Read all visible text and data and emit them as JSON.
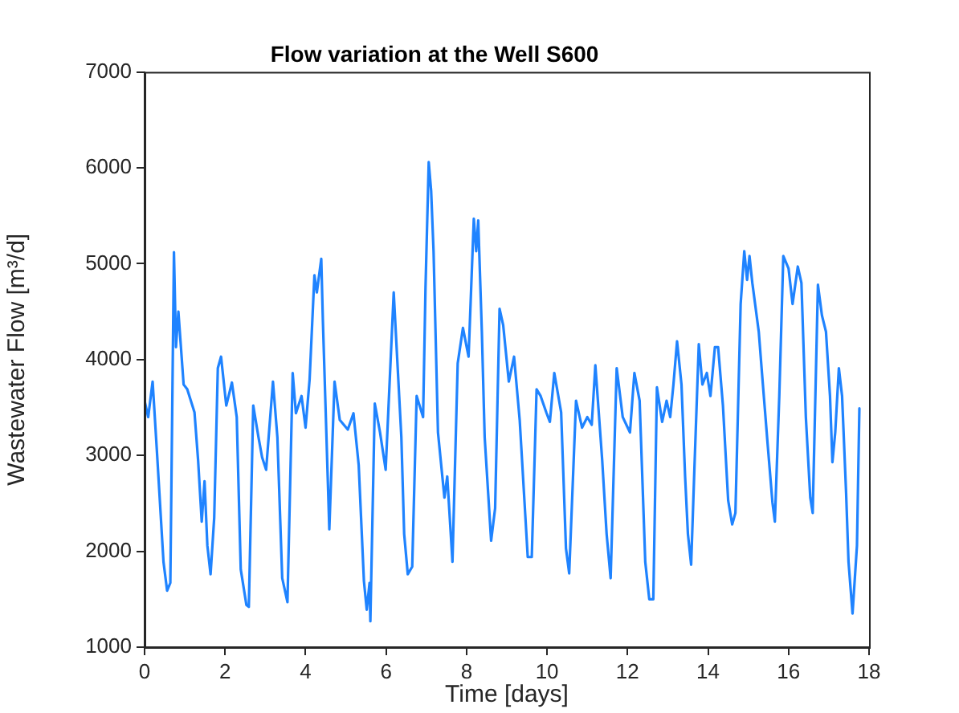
{
  "chart_data": {
    "type": "line",
    "title": "Flow variation at the Well S600",
    "xlabel": "Time [days]",
    "ylabel": "Wastewater Flow [m³/d]",
    "xlim": [
      0,
      18
    ],
    "xticks": [
      0,
      2,
      4,
      6,
      8,
      10,
      12,
      14,
      16,
      18
    ],
    "ylim": [
      1000,
      7000
    ],
    "yticks": [
      1000,
      2000,
      3000,
      4000,
      5000,
      6000,
      7000
    ],
    "grid": false,
    "legend": false,
    "marker": "none",
    "line_style": "solid",
    "series": [
      {
        "color": "#1f83ff",
        "x": [
          0,
          0.09,
          0.2,
          0.31,
          0.47,
          0.56,
          0.64,
          0.73,
          0.78,
          0.84,
          0.97,
          1.06,
          1.24,
          1.33,
          1.42,
          1.49,
          1.56,
          1.64,
          1.73,
          1.82,
          1.9,
          2.03,
          2.17,
          2.29,
          2.39,
          2.53,
          2.59,
          2.7,
          2.83,
          2.92,
          3.02,
          3.19,
          3.3,
          3.42,
          3.55,
          3.68,
          3.76,
          3.9,
          4.0,
          4.1,
          4.22,
          4.28,
          4.39,
          4.43,
          4.59,
          4.72,
          4.85,
          5.05,
          5.19,
          5.32,
          5.45,
          5.52,
          5.59,
          5.61,
          5.72,
          5.85,
          5.99,
          6.19,
          6.38,
          6.45,
          6.54,
          6.65,
          6.76,
          6.92,
          6.98,
          7.06,
          7.12,
          7.18,
          7.29,
          7.45,
          7.52,
          7.65,
          7.78,
          7.91,
          8.05,
          8.18,
          8.24,
          8.29,
          8.38,
          8.45,
          8.61,
          8.71,
          8.82,
          8.91,
          9.05,
          9.18,
          9.32,
          9.52,
          9.62,
          9.74,
          9.84,
          9.98,
          10.07,
          10.18,
          10.35,
          10.47,
          10.55,
          10.72,
          10.87,
          11.0,
          11.11,
          11.2,
          11.37,
          11.48,
          11.58,
          11.73,
          11.88,
          11.97,
          12.06,
          12.17,
          12.3,
          12.44,
          12.54,
          12.64,
          12.73,
          12.86,
          12.97,
          13.06,
          13.14,
          13.23,
          13.34,
          13.43,
          13.5,
          13.58,
          13.66,
          13.77,
          13.86,
          13.97,
          14.06,
          14.17,
          14.25,
          14.37,
          14.5,
          14.6,
          14.68,
          14.81,
          14.9,
          14.97,
          15.03,
          15.1,
          15.26,
          15.34,
          15.48,
          15.6,
          15.66,
          15.77,
          15.87,
          16.0,
          16.1,
          16.23,
          16.32,
          16.43,
          16.54,
          16.6,
          16.73,
          16.83,
          16.93,
          17.03,
          17.09,
          17.16,
          17.25,
          17.33,
          17.43,
          17.49,
          17.59,
          17.7,
          17.76
        ],
        "values": [
          3570,
          3400,
          3770,
          3020,
          1890,
          1590,
          1670,
          5120,
          4130,
          4500,
          3740,
          3690,
          3450,
          2950,
          2310,
          2730,
          2060,
          1760,
          2350,
          3910,
          4030,
          3520,
          3760,
          3400,
          1810,
          1440,
          1420,
          3520,
          3190,
          2980,
          2850,
          3770,
          3190,
          1720,
          1470,
          3860,
          3440,
          3620,
          3290,
          3790,
          4880,
          4700,
          5050,
          4410,
          2230,
          3770,
          3370,
          3270,
          3440,
          2900,
          1690,
          1390,
          1670,
          1270,
          3540,
          3240,
          2850,
          4700,
          3190,
          2180,
          1760,
          1840,
          3620,
          3400,
          4750,
          6060,
          5760,
          5130,
          3240,
          2560,
          2780,
          1890,
          3960,
          4330,
          4030,
          5470,
          5130,
          5450,
          4290,
          3190,
          2110,
          2450,
          4530,
          4360,
          3770,
          4030,
          3370,
          1940,
          1940,
          3690,
          3620,
          3450,
          3350,
          3860,
          3450,
          2030,
          1770,
          3570,
          3290,
          3400,
          3320,
          3940,
          2950,
          2180,
          1720,
          3910,
          3400,
          3320,
          3240,
          3860,
          3570,
          1890,
          1500,
          1500,
          3710,
          3350,
          3570,
          3400,
          3740,
          4190,
          3740,
          2780,
          2180,
          1860,
          2850,
          4160,
          3740,
          3860,
          3620,
          4130,
          4130,
          3520,
          2530,
          2280,
          2400,
          4580,
          5130,
          4830,
          5080,
          4800,
          4290,
          3860,
          3120,
          2510,
          2310,
          3620,
          5080,
          4950,
          4580,
          4970,
          4800,
          3400,
          2560,
          2400,
          4780,
          4460,
          4290,
          3620,
          2930,
          3240,
          3910,
          3620,
          2610,
          1890,
          1350,
          2060,
          3490
        ]
      }
    ]
  }
}
